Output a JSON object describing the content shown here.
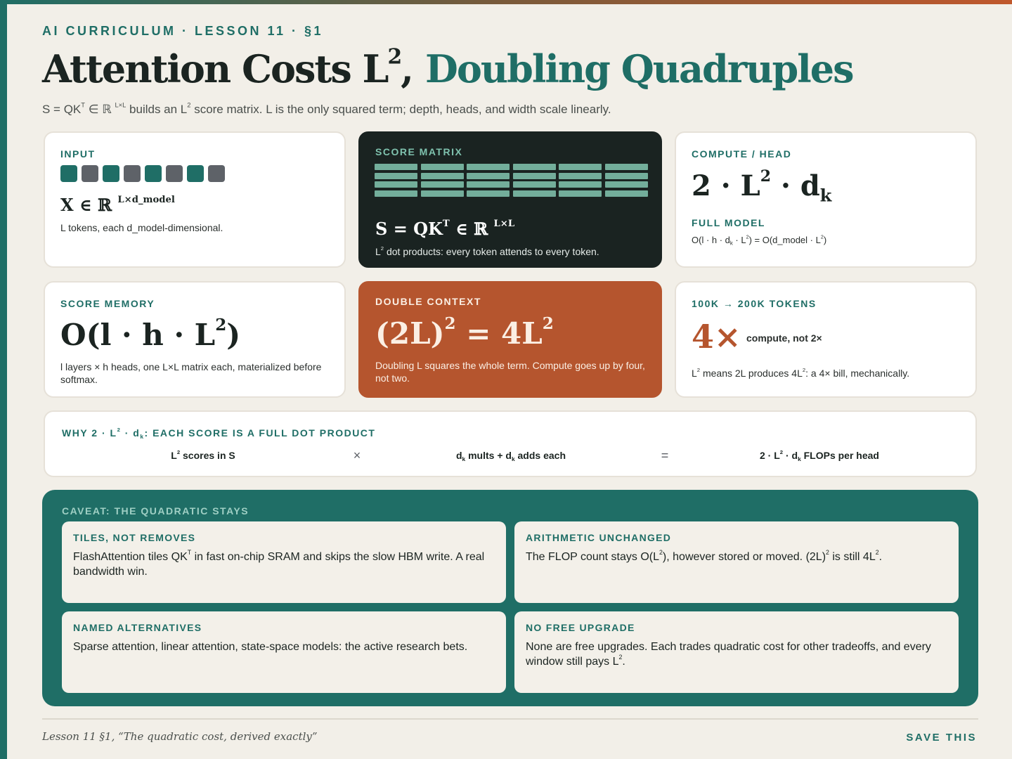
{
  "header": {
    "kicker": "AI CURRICULUM · LESSON 11 · §1",
    "title": [
      "Attention Costs L",
      {
        "sup": "2"
      },
      ","
    ],
    "title_accent": "Doubling Quadruples",
    "subtitle": [
      "S = QK",
      {
        "sup": "T"
      },
      " ∈ ℝ ",
      {
        "sup": "L×L"
      },
      " builds an L",
      {
        "sup": "2"
      },
      " score matrix. L is the only squared term; depth, heads, and width scale linearly."
    ]
  },
  "cards": [
    {
      "label": "INPUT",
      "formula": [
        "X ∈ ℝ ",
        {
          "sup": "L×d_model"
        }
      ],
      "note": "L tokens, each d_model-dimensional."
    },
    {
      "label": "SCORE MATRIX",
      "formula": [
        "S = QK",
        {
          "sup": "T"
        },
        " ∈ ℝ ",
        {
          "sup": "L×L"
        }
      ],
      "note": [
        "L",
        {
          "sup": "2"
        },
        " dot products: every token attends to every token."
      ]
    },
    {
      "label": "COMPUTE / HEAD",
      "formula": [
        "2 · L",
        {
          "sup": "2"
        },
        " · d",
        {
          "sub": "k"
        }
      ],
      "sublabel": "FULL MODEL",
      "note": [
        "O(l · h · d",
        {
          "sub": "k"
        },
        " · L",
        {
          "sup": "2"
        },
        ") = O(d_model · L",
        {
          "sup": "2"
        },
        ")"
      ]
    },
    {
      "label": "SCORE MEMORY",
      "formula": [
        "O(l · h · L",
        {
          "sup": "2"
        },
        ")"
      ],
      "note": "l layers × h heads, one L×L matrix each, materialized before softmax."
    },
    {
      "label": "DOUBLE CONTEXT",
      "formula": [
        "(2L)",
        {
          "sup": "2"
        },
        " = 4L",
        {
          "sup": "2"
        }
      ],
      "note": "Doubling L squares the whole term. Compute goes up by four, not two."
    },
    {
      "label": "100K → 200K TOKENS",
      "big": "4×",
      "big_note": "compute, not 2×",
      "note": [
        "L",
        {
          "sup": "2"
        },
        " means 2L produces 4L",
        {
          "sup": "2"
        },
        ": a 4× bill, mechanically."
      ]
    }
  ],
  "why": {
    "label": [
      "WHY 2 · L",
      {
        "sup": "2"
      },
      " · d",
      {
        "sub": "k"
      },
      ": EACH SCORE IS A FULL DOT PRODUCT"
    ],
    "terms": [
      [
        "L",
        {
          "sup": "2"
        },
        " scores in S"
      ],
      "×",
      [
        "d",
        {
          "sub": "k"
        },
        " mults + d",
        {
          "sub": "k"
        },
        " adds each"
      ],
      "=",
      [
        "2 · L",
        {
          "sup": "2"
        },
        " · d",
        {
          "sub": "k"
        },
        " FLOPs per head"
      ]
    ]
  },
  "caveat": {
    "label": "CAVEAT: THE QUADRATIC STAYS",
    "items": [
      {
        "title": "TILES, NOT REMOVES",
        "text": [
          "FlashAttention tiles QK",
          {
            "sup": "T"
          },
          " in fast on-chip SRAM and skips the slow HBM write. A real bandwidth win."
        ]
      },
      {
        "title": "ARITHMETIC UNCHANGED",
        "text": [
          "The FLOP count stays O(L",
          {
            "sup": "2"
          },
          "), however stored or moved. (2L)",
          {
            "sup": "2"
          },
          " is still 4L",
          {
            "sup": "2"
          },
          "."
        ]
      },
      {
        "title": "NAMED ALTERNATIVES",
        "text": "Sparse attention, linear attention, state-space models: the active research bets."
      },
      {
        "title": "NO FREE UPGRADE",
        "text": [
          "None are free upgrades. Each trades quadratic cost for other tradeoffs, and every window still pays L",
          {
            "sup": "2"
          },
          "."
        ]
      }
    ]
  },
  "footer": {
    "citation": "Lesson 11 §1, “The quadratic cost, derived exactly”",
    "action": "SAVE THIS"
  }
}
